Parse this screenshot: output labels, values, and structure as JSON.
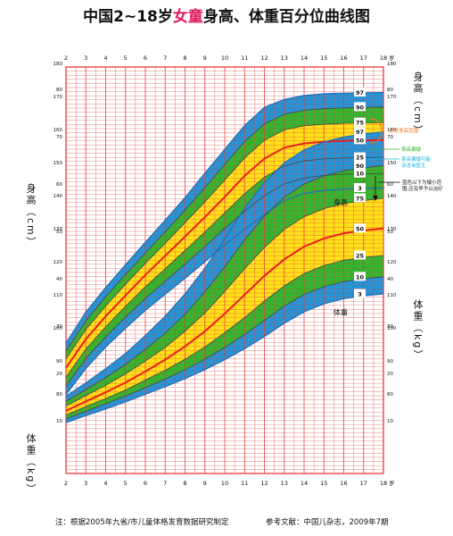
{
  "title": {
    "prefix": "中国2~18岁",
    "highlight": "女童",
    "suffix": "身高、体重百分位曲线图"
  },
  "footer": {
    "note": "注：根据2005年九省/市儿童体格发育数据研究制定",
    "reference": "参考文献：中国儿杂志，2009年7期"
  },
  "side_labels": {
    "height_left": "身高（cm）",
    "weight_left": "体重（kg）",
    "height_right": "身高（cm）",
    "weight_right": "体重（kg）"
  },
  "legend_notes": {
    "normal_range": "正常身高范围",
    "lower_edge": "身高偏矮",
    "lower_sub": "身高偏矮可能",
    "lower_sub2": "该咨询医生",
    "blue_note1": "蓝色以下为矮小范",
    "blue_note2": "围,应及早予以治疗"
  },
  "colors": {
    "grid": "#e8393a",
    "p3_p10": "#2196d9",
    "p10_p25": "#2fb82f",
    "p25_p75": "#ffe11a",
    "p75_p90": "#2fb82f",
    "p90_p97": "#2196d9",
    "median_line": "#e8201c",
    "edge_line": "#1e6fb8"
  },
  "chart_data": [
    {
      "type": "area",
      "name": "height",
      "title": "身高",
      "xlabel": "岁",
      "x_ticks": [
        2,
        3,
        4,
        5,
        6,
        7,
        8,
        9,
        10,
        11,
        12,
        13,
        14,
        15,
        16,
        17,
        18
      ],
      "xlim": [
        2,
        18
      ],
      "ylim": [
        80,
        180
      ],
      "y_ticks": [
        80,
        90,
        100,
        110,
        120,
        130,
        140,
        150,
        160,
        170,
        180
      ],
      "y_unit": "cm",
      "curve_labels": [
        "97",
        "90",
        "75",
        "50",
        "25",
        "10",
        "3"
      ],
      "x": [
        2,
        3,
        4,
        5,
        6,
        7,
        8,
        9,
        10,
        11,
        12,
        13,
        14,
        15,
        16,
        17,
        18
      ],
      "series": [
        {
          "name": "97",
          "values": [
            95.4,
            104.8,
            112.2,
            119.1,
            125.9,
            132.6,
            139.4,
            146.8,
            154.0,
            161.2,
            166.7,
            169.1,
            170.3,
            170.8,
            171.0,
            171.1,
            171.2
          ]
        },
        {
          "name": "90",
          "values": [
            93.0,
            102.1,
            109.4,
            116.1,
            122.6,
            129.1,
            135.6,
            142.4,
            149.4,
            156.3,
            161.7,
            164.6,
            165.8,
            166.3,
            166.5,
            166.7,
            166.8
          ]
        },
        {
          "name": "75",
          "values": [
            90.6,
            99.5,
            106.6,
            113.2,
            119.5,
            125.6,
            131.8,
            138.1,
            144.7,
            151.4,
            156.7,
            159.9,
            161.1,
            161.6,
            161.9,
            162.0,
            162.1
          ]
        },
        {
          "name": "50",
          "values": [
            87.9,
            96.6,
            103.5,
            109.8,
            116.0,
            121.8,
            127.6,
            133.5,
            139.6,
            146.0,
            151.2,
            154.5,
            155.8,
            156.3,
            156.6,
            156.7,
            156.8
          ]
        },
        {
          "name": "25",
          "values": [
            85.1,
            93.6,
            100.3,
            106.5,
            112.4,
            117.9,
            123.4,
            129.0,
            134.8,
            140.6,
            145.6,
            149.0,
            150.5,
            151.1,
            151.4,
            151.5,
            151.6
          ]
        },
        {
          "name": "10",
          "values": [
            82.4,
            90.7,
            97.3,
            103.3,
            108.9,
            114.1,
            119.3,
            124.6,
            130.1,
            135.3,
            140.0,
            143.6,
            145.3,
            146.1,
            146.5,
            146.6,
            146.7
          ]
        },
        {
          "name": "3",
          "values": [
            79.8,
            87.7,
            94.2,
            99.9,
            105.3,
            110.2,
            115.0,
            120.0,
            125.1,
            129.8,
            134.3,
            138.5,
            140.7,
            141.5,
            142.0,
            142.2,
            142.3
          ]
        }
      ]
    },
    {
      "type": "area",
      "name": "weight",
      "title": "体重",
      "xlabel": "岁",
      "x_ticks": [
        2,
        3,
        4,
        5,
        6,
        7,
        8,
        9,
        10,
        11,
        12,
        13,
        14,
        15,
        16,
        17,
        18
      ],
      "xlim": [
        2,
        18
      ],
      "ylim": [
        0,
        80
      ],
      "y_ticks": [
        10,
        20,
        30,
        40,
        50,
        60,
        70,
        80
      ],
      "y_unit": "kg",
      "curve_labels": [
        "97",
        "90",
        "75",
        "50",
        "25",
        "10",
        "3"
      ],
      "x": [
        2,
        3,
        4,
        5,
        6,
        7,
        8,
        9,
        10,
        11,
        12,
        13,
        14,
        15,
        16,
        17,
        18
      ],
      "series": [
        {
          "name": "97",
          "values": [
            15.2,
            18.0,
            21.0,
            24.2,
            28.0,
            32.1,
            36.8,
            42.2,
            48.4,
            54.9,
            60.3,
            64.5,
            67.2,
            68.9,
            69.9,
            70.6,
            71.0
          ]
        },
        {
          "name": "90",
          "values": [
            14.1,
            16.6,
            19.1,
            21.9,
            25.1,
            28.5,
            32.5,
            37.2,
            42.5,
            48.2,
            53.2,
            57.2,
            60.0,
            61.7,
            62.8,
            63.4,
            63.9
          ]
        },
        {
          "name": "75",
          "values": [
            13.1,
            15.3,
            17.5,
            19.9,
            22.6,
            25.5,
            28.9,
            32.8,
            37.3,
            42.1,
            46.6,
            50.4,
            53.1,
            54.8,
            55.9,
            56.5,
            57.0
          ]
        },
        {
          "name": "50",
          "values": [
            12.1,
            14.1,
            16.0,
            18.1,
            20.4,
            22.9,
            25.7,
            28.9,
            32.6,
            36.6,
            40.6,
            44.1,
            46.8,
            48.5,
            49.6,
            50.2,
            50.6
          ]
        },
        {
          "name": "25",
          "values": [
            11.2,
            13.0,
            14.7,
            16.5,
            18.6,
            20.7,
            23.0,
            25.6,
            28.6,
            31.8,
            35.3,
            38.5,
            41.1,
            42.8,
            43.9,
            44.5,
            44.9
          ]
        },
        {
          "name": "10",
          "values": [
            10.4,
            12.0,
            13.6,
            15.2,
            17.0,
            18.8,
            20.8,
            23.0,
            25.5,
            28.2,
            31.2,
            34.2,
            36.7,
            38.3,
            39.4,
            40.0,
            40.4
          ]
        },
        {
          "name": "3",
          "values": [
            9.6,
            11.1,
            12.5,
            14.0,
            15.6,
            17.2,
            18.9,
            20.8,
            22.9,
            25.2,
            27.8,
            30.6,
            33.0,
            34.7,
            35.8,
            36.4,
            36.8
          ]
        }
      ]
    }
  ]
}
